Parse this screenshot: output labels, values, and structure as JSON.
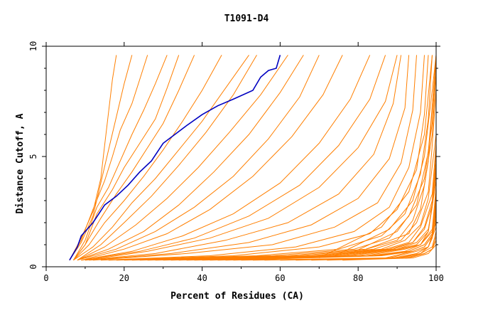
{
  "chart_data": {
    "type": "line",
    "title": "T1091-D4",
    "xlabel": "Percent of Residues (CA)",
    "ylabel": "Distance Cutoff, A",
    "xlim": [
      0,
      100
    ],
    "ylim": [
      0,
      10
    ],
    "xticks": [
      "0",
      "20",
      "40",
      "60",
      "80",
      "100"
    ],
    "yticks": [
      "0",
      "5",
      "10"
    ],
    "colors": {
      "highlight": "#0000c0",
      "others": "#ff7f00"
    },
    "highlight": {
      "x": [
        6,
        8,
        9,
        12,
        15,
        18,
        21,
        24,
        27,
        30,
        33,
        36,
        40,
        44,
        48,
        53,
        55,
        57,
        59,
        60
      ],
      "y": [
        0.3,
        0.9,
        1.4,
        2.0,
        2.8,
        3.2,
        3.7,
        4.3,
        4.8,
        5.6,
        6.0,
        6.4,
        6.9,
        7.3,
        7.6,
        8.0,
        8.6,
        8.9,
        9.0,
        9.6
      ]
    },
    "series": [
      {
        "x": [
          6,
          9,
          12,
          14,
          15,
          16,
          17,
          18
        ],
        "y": [
          0.3,
          1.3,
          2.5,
          4.0,
          5.5,
          7.0,
          8.5,
          9.6
        ]
      },
      {
        "x": [
          6,
          9,
          12,
          14,
          16,
          18,
          20,
          22
        ],
        "y": [
          0.3,
          1.1,
          2.3,
          3.8,
          5.3,
          6.8,
          8.3,
          9.6
        ]
      },
      {
        "x": [
          6,
          9,
          12,
          15,
          17,
          19,
          22,
          24,
          26
        ],
        "y": [
          0.3,
          1.2,
          2.6,
          3.9,
          5.0,
          6.2,
          7.4,
          8.5,
          9.6
        ]
      },
      {
        "x": [
          7,
          10,
          13,
          16,
          19,
          22,
          25,
          28,
          31
        ],
        "y": [
          0.3,
          1.2,
          2.7,
          3.6,
          4.8,
          6.0,
          7.1,
          8.3,
          9.6
        ]
      },
      {
        "x": [
          7,
          10,
          13,
          17,
          20,
          24,
          28,
          31,
          34
        ],
        "y": [
          0.3,
          1.0,
          2.4,
          3.5,
          4.5,
          5.6,
          6.7,
          8.1,
          9.6
        ]
      },
      {
        "x": [
          7,
          10,
          14,
          18,
          22,
          26,
          30,
          34,
          38
        ],
        "y": [
          0.3,
          1.0,
          2.2,
          3.3,
          4.3,
          5.4,
          6.5,
          8.0,
          9.6
        ]
      },
      {
        "x": [
          7,
          11,
          15,
          20,
          25,
          30,
          35,
          40,
          45
        ],
        "y": [
          0.3,
          1.0,
          2.0,
          3.0,
          4.1,
          5.3,
          6.6,
          8.0,
          9.6
        ]
      },
      {
        "x": [
          7,
          12,
          17,
          22,
          28,
          34,
          40,
          46,
          52
        ],
        "y": [
          0.3,
          0.9,
          1.8,
          2.9,
          4.0,
          5.3,
          6.6,
          8.1,
          9.6
        ]
      },
      {
        "x": [
          8,
          14,
          20,
          27,
          34,
          41,
          48,
          54
        ],
        "y": [
          0.3,
          1.0,
          2.0,
          3.2,
          4.6,
          6.1,
          7.8,
          9.6
        ]
      },
      {
        "x": [
          8,
          15,
          23,
          31,
          39,
          47,
          55,
          62
        ],
        "y": [
          0.3,
          0.9,
          1.9,
          3.1,
          4.5,
          6.1,
          7.8,
          9.6
        ]
      },
      {
        "x": [
          8,
          16,
          25,
          34,
          43,
          52,
          60,
          66
        ],
        "y": [
          0.3,
          0.8,
          1.6,
          2.8,
          4.3,
          6.0,
          7.9,
          9.6
        ]
      },
      {
        "x": [
          8,
          18,
          28,
          38,
          48,
          57,
          65,
          70
        ],
        "y": [
          0.3,
          0.8,
          1.6,
          2.7,
          4.1,
          5.8,
          7.7,
          9.6
        ]
      },
      {
        "x": [
          9,
          20,
          31,
          42,
          53,
          63,
          71,
          76
        ],
        "y": [
          0.3,
          0.8,
          1.5,
          2.6,
          4.1,
          5.9,
          7.8,
          9.6
        ]
      },
      {
        "x": [
          9,
          22,
          35,
          48,
          60,
          70,
          78,
          83
        ],
        "y": [
          0.3,
          0.7,
          1.4,
          2.4,
          3.8,
          5.6,
          7.6,
          9.6
        ]
      },
      {
        "x": [
          9,
          24,
          38,
          52,
          65,
          75,
          83,
          87
        ],
        "y": [
          0.3,
          0.7,
          1.3,
          2.3,
          3.7,
          5.5,
          7.6,
          9.6
        ]
      },
      {
        "x": [
          10,
          26,
          42,
          57,
          70,
          80,
          87,
          90
        ],
        "y": [
          0.3,
          0.7,
          1.3,
          2.2,
          3.6,
          5.4,
          7.5,
          9.6
        ]
      },
      {
        "x": [
          10,
          28,
          46,
          62,
          75,
          84,
          89,
          91
        ],
        "y": [
          0.3,
          0.6,
          1.2,
          2.0,
          3.3,
          5.1,
          7.4,
          9.6
        ]
      },
      {
        "x": [
          11,
          32,
          52,
          68,
          80,
          88,
          92,
          93
        ],
        "y": [
          0.3,
          0.6,
          1.1,
          1.9,
          3.1,
          4.9,
          7.2,
          9.6
        ]
      },
      {
        "x": [
          12,
          36,
          58,
          74,
          85,
          91,
          94,
          95
        ],
        "y": [
          0.3,
          0.6,
          1.0,
          1.8,
          2.9,
          4.7,
          7.1,
          9.6
        ]
      },
      {
        "x": [
          14,
          42,
          64,
          79,
          88,
          93,
          96,
          97
        ],
        "y": [
          0.3,
          0.5,
          0.9,
          1.6,
          2.7,
          4.5,
          7.0,
          9.6
        ]
      },
      {
        "x": [
          16,
          48,
          70,
          83,
          90,
          95,
          97,
          98
        ],
        "y": [
          0.3,
          0.5,
          0.9,
          1.5,
          2.6,
          4.4,
          6.9,
          9.6
        ]
      },
      {
        "x": [
          18,
          54,
          75,
          86,
          92,
          96,
          98,
          99
        ],
        "y": [
          0.3,
          0.5,
          0.8,
          1.4,
          2.4,
          4.2,
          6.7,
          9.6
        ]
      },
      {
        "x": [
          20,
          58,
          79,
          88,
          93,
          97,
          99,
          100
        ],
        "y": [
          0.3,
          0.5,
          0.8,
          1.3,
          2.3,
          4.0,
          6.5,
          9.4
        ]
      },
      {
        "x": [
          22,
          62,
          82,
          90,
          94,
          97,
          99,
          100
        ],
        "y": [
          0.3,
          0.5,
          0.8,
          1.2,
          2.1,
          3.7,
          6.0,
          8.8
        ]
      },
      {
        "x": [
          24,
          65,
          84,
          91,
          95,
          98,
          99,
          100
        ],
        "y": [
          0.3,
          0.5,
          0.8,
          1.2,
          2.0,
          3.4,
          5.5,
          8.0
        ]
      },
      {
        "x": [
          26,
          68,
          86,
          92,
          96,
          98,
          100
        ],
        "y": [
          0.3,
          0.5,
          0.8,
          1.2,
          1.9,
          3.1,
          6.0
        ]
      },
      {
        "x": [
          28,
          70,
          87,
          93,
          96,
          99,
          100
        ],
        "y": [
          0.3,
          0.5,
          0.8,
          1.1,
          1.8,
          3.3,
          5.6
        ]
      },
      {
        "x": [
          30,
          72,
          88,
          94,
          97,
          99,
          100
        ],
        "y": [
          0.3,
          0.5,
          0.8,
          1.1,
          1.8,
          3.0,
          5.2
        ]
      },
      {
        "x": [
          32,
          74,
          89,
          94,
          97,
          99,
          100
        ],
        "y": [
          0.3,
          0.5,
          0.8,
          1.1,
          1.7,
          2.8,
          4.8
        ]
      },
      {
        "x": [
          34,
          76,
          90,
          95,
          98,
          99,
          100
        ],
        "y": [
          0.3,
          0.5,
          0.8,
          1.1,
          1.7,
          2.7,
          4.5
        ]
      },
      {
        "x": [
          36,
          78,
          90,
          95,
          98,
          100
        ],
        "y": [
          0.3,
          0.5,
          0.8,
          1.0,
          1.6,
          4.2
        ]
      },
      {
        "x": [
          38,
          80,
          91,
          96,
          98,
          100
        ],
        "y": [
          0.3,
          0.5,
          0.8,
          1.0,
          1.6,
          3.9
        ]
      },
      {
        "x": [
          40,
          82,
          92,
          96,
          99,
          100
        ],
        "y": [
          0.3,
          0.5,
          0.8,
          1.0,
          1.7,
          3.6
        ]
      },
      {
        "x": [
          42,
          83,
          92,
          96,
          99,
          100
        ],
        "y": [
          0.3,
          0.5,
          0.7,
          1.0,
          1.6,
          3.3
        ]
      },
      {
        "x": [
          44,
          84,
          93,
          97,
          99,
          100
        ],
        "y": [
          0.3,
          0.5,
          0.7,
          1.0,
          1.5,
          3.0
        ]
      },
      {
        "x": [
          46,
          85,
          93,
          97,
          99,
          100
        ],
        "y": [
          0.3,
          0.5,
          0.7,
          1.0,
          1.5,
          2.8
        ]
      },
      {
        "x": [
          48,
          86,
          94,
          97,
          99,
          100
        ],
        "y": [
          0.3,
          0.5,
          0.7,
          0.9,
          1.4,
          2.6
        ]
      },
      {
        "x": [
          50,
          87,
          94,
          97,
          99,
          100
        ],
        "y": [
          0.3,
          0.4,
          0.7,
          0.9,
          1.4,
          2.4
        ]
      },
      {
        "x": [
          53,
          88,
          95,
          98,
          99,
          100
        ],
        "y": [
          0.3,
          0.4,
          0.7,
          0.9,
          1.3,
          2.2
        ]
      },
      {
        "x": [
          56,
          89,
          95,
          98,
          100
        ],
        "y": [
          0.3,
          0.4,
          0.6,
          0.9,
          2.0
        ]
      },
      {
        "x": [
          60,
          90,
          96,
          98,
          100
        ],
        "y": [
          0.3,
          0.4,
          0.6,
          0.9,
          1.8
        ]
      },
      {
        "x": [
          64,
          91,
          96,
          99,
          100
        ],
        "y": [
          0.3,
          0.4,
          0.6,
          0.9,
          1.6
        ]
      },
      {
        "x": [
          68,
          92,
          97,
          99,
          100
        ],
        "y": [
          0.3,
          0.4,
          0.6,
          0.8,
          1.4
        ]
      },
      {
        "x": [
          72,
          93,
          97,
          99,
          100
        ],
        "y": [
          0.3,
          0.4,
          0.6,
          0.8,
          1.2
        ]
      },
      {
        "x": [
          76,
          94,
          98,
          100
        ],
        "y": [
          0.3,
          0.4,
          0.6,
          1.0
        ]
      },
      {
        "x": [
          82,
          93,
          96,
          98,
          100
        ],
        "y": [
          0.8,
          1.5,
          2.6,
          4.8,
          9.6
        ]
      },
      {
        "x": [
          78,
          90,
          95,
          98,
          100
        ],
        "y": [
          0.6,
          1.6,
          2.8,
          5.2,
          9.4
        ]
      },
      {
        "x": [
          74,
          88,
          94,
          97,
          99,
          100
        ],
        "y": [
          0.5,
          1.7,
          3.0,
          5.0,
          8.0,
          9.6
        ]
      },
      {
        "x": [
          70,
          86,
          93,
          97,
          99
        ],
        "y": [
          0.4,
          1.8,
          3.4,
          6.0,
          9.6
        ]
      }
    ]
  }
}
